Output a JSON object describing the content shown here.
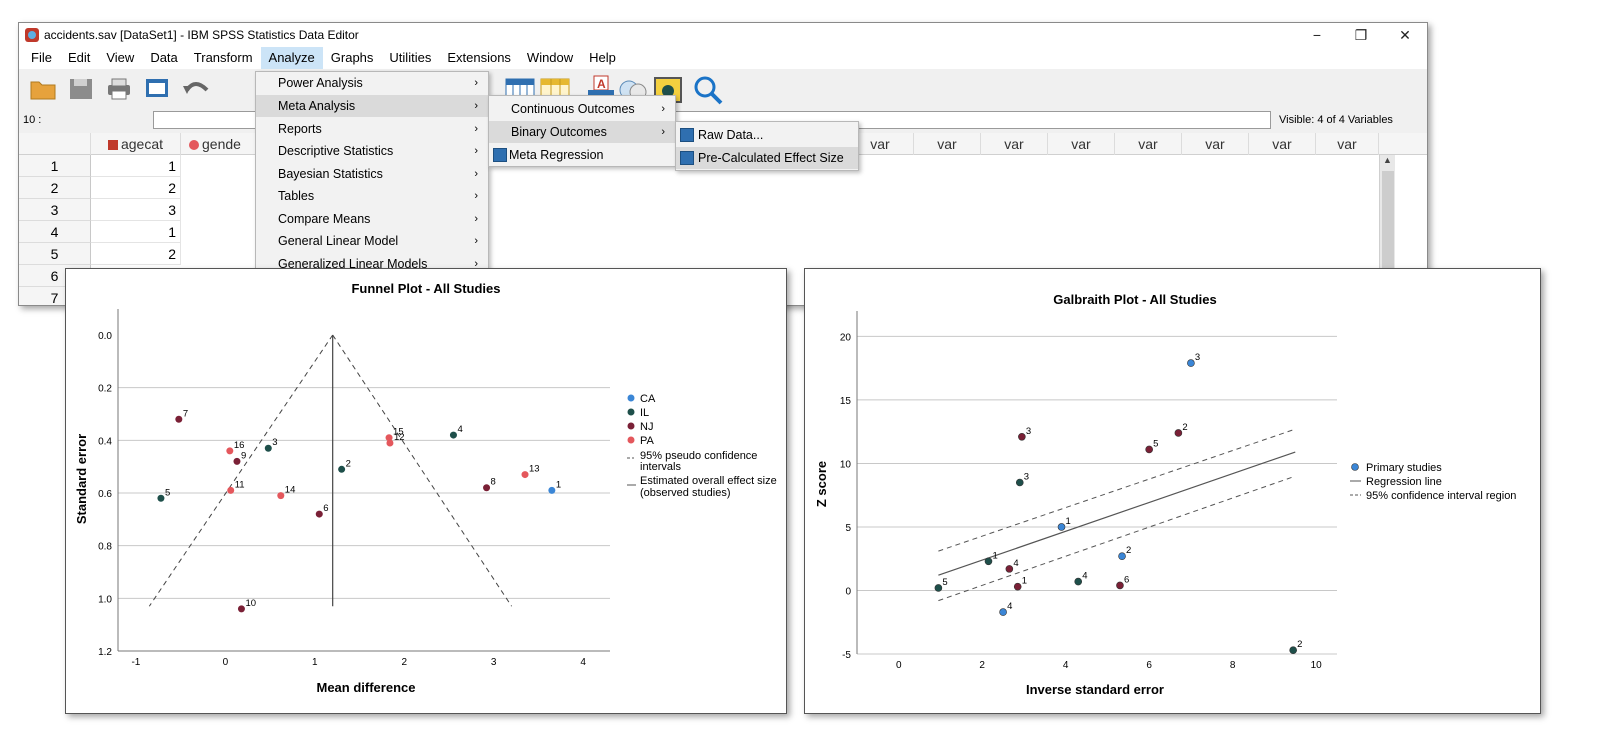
{
  "window": {
    "title": "accidents.sav [DataSet1] - IBM SPSS Statistics Data Editor",
    "controls": [
      "−",
      "❐",
      "✕"
    ]
  },
  "menubar": [
    "File",
    "Edit",
    "View",
    "Data",
    "Transform",
    "Analyze",
    "Graphs",
    "Utilities",
    "Extensions",
    "Window",
    "Help"
  ],
  "cell_ref": "10 :",
  "visible_text": "Visible: 4 of 4 Variables",
  "grid": {
    "columns": [
      "agecat",
      "gende",
      "var",
      "var",
      "var",
      "var",
      "var",
      "var",
      "var",
      "var"
    ],
    "row_numbers": [
      "1",
      "2",
      "3",
      "4",
      "5",
      "6",
      "7"
    ],
    "agecat_values": [
      "1",
      "2",
      "3",
      "1",
      "2"
    ]
  },
  "analyze_menu": [
    "Power Analysis",
    "Meta Analysis",
    "Reports",
    "Descriptive Statistics",
    "Bayesian Statistics",
    "Tables",
    "Compare Means",
    "General Linear Model",
    "Generalized Linear Models"
  ],
  "meta_menu": [
    "Continuous Outcomes",
    "Binary Outcomes",
    "Meta Regression"
  ],
  "binary_menu": [
    "Raw Data...",
    "Pre-Calculated Effect Size"
  ],
  "charts": {
    "funnel": {
      "title": "Funnel Plot - All Studies",
      "xlabel": "Mean difference",
      "ylabel": "Standard error",
      "legend_groups": [
        "CA",
        "IL",
        "NJ",
        "PA"
      ],
      "legend_ci": "95% pseudo confidence intervals",
      "legend_ci_lines": [
        "95% pseudo confidence",
        "intervals"
      ],
      "legend_effect_lines": [
        "Estimated overall effect size",
        "(observed studies)"
      ]
    },
    "galbraith": {
      "title": "Galbraith Plot - All Studies",
      "xlabel": "Inverse standard error",
      "ylabel": "Z score",
      "legend": [
        "Primary studies",
        "Regression line",
        "95% confidence interval region"
      ]
    }
  },
  "colors": {
    "CA": "#3b86d6",
    "IL": "#1e4f4a",
    "NJ": "#7a2036",
    "PA": "#e4575c",
    "primary": "#3b86d6",
    "line": "#555555"
  },
  "chart_data": [
    {
      "type": "scatter",
      "title": "Funnel Plot - All Studies",
      "xlabel": "Mean difference",
      "ylabel": "Standard error",
      "xlim": [
        -1.2,
        4.3
      ],
      "ylim": [
        0.0,
        1.2
      ],
      "y_reversed": true,
      "xticks": [
        -1,
        0,
        1,
        2,
        3,
        4
      ],
      "yticks": [
        0.0,
        0.2,
        0.4,
        0.6,
        0.8,
        1.0,
        1.2
      ],
      "ytick_labels": [
        "0.0",
        "0.2",
        "0.4",
        "0.6",
        "0.8",
        "1.0",
        "1.2"
      ],
      "overall_effect": 1.2,
      "funnel_apex_se": 0.0,
      "funnel_base_se": 1.03,
      "funnel_base_x": [
        -0.85,
        3.2
      ],
      "series": [
        {
          "name": "CA",
          "points": [
            {
              "x": 3.65,
              "y": 0.59,
              "label": "1"
            }
          ]
        },
        {
          "name": "IL",
          "points": [
            {
              "x": -0.72,
              "y": 0.62,
              "label": "5"
            },
            {
              "x": 0.48,
              "y": 0.43,
              "label": "3"
            },
            {
              "x": 1.3,
              "y": 0.51,
              "label": "2"
            },
            {
              "x": 2.55,
              "y": 0.38,
              "label": "4"
            }
          ]
        },
        {
          "name": "NJ",
          "points": [
            {
              "x": -0.52,
              "y": 0.32,
              "label": "7"
            },
            {
              "x": 0.13,
              "y": 0.48,
              "label": "9"
            },
            {
              "x": 1.05,
              "y": 0.68,
              "label": "6"
            },
            {
              "x": 2.92,
              "y": 0.58,
              "label": "8"
            },
            {
              "x": 0.18,
              "y": 1.04,
              "label": "10"
            }
          ]
        },
        {
          "name": "PA",
          "points": [
            {
              "x": 0.05,
              "y": 0.44,
              "label": "16"
            },
            {
              "x": 0.06,
              "y": 0.59,
              "label": "11"
            },
            {
              "x": 0.62,
              "y": 0.61,
              "label": "14"
            },
            {
              "x": 1.83,
              "y": 0.39,
              "label": "15"
            },
            {
              "x": 1.84,
              "y": 0.41,
              "label": "12"
            },
            {
              "x": 3.35,
              "y": 0.53,
              "label": "13"
            }
          ]
        }
      ]
    },
    {
      "type": "scatter",
      "title": "Galbraith Plot - All Studies",
      "xlabel": "Inverse standard error",
      "ylabel": "Z score",
      "xlim": [
        -1,
        10.5
      ],
      "ylim": [
        -5,
        22
      ],
      "xticks": [
        0,
        2,
        4,
        6,
        8,
        10
      ],
      "yticks": [
        -5,
        0,
        5,
        10,
        15,
        20
      ],
      "regression": {
        "x": [
          0.95,
          9.5
        ],
        "y": [
          1.2,
          10.9
        ]
      },
      "ci_upper": {
        "x": [
          0.95,
          9.5
        ],
        "y": [
          3.1,
          12.7
        ]
      },
      "ci_lower": {
        "x": [
          0.95,
          9.5
        ],
        "y": [
          -0.8,
          9.0
        ]
      },
      "points": [
        {
          "x": 7.0,
          "y": 17.9,
          "label": "3",
          "group": "CA"
        },
        {
          "x": 3.9,
          "y": 5.0,
          "label": "1",
          "group": "CA"
        },
        {
          "x": 5.35,
          "y": 2.7,
          "label": "2",
          "group": "CA"
        },
        {
          "x": 2.5,
          "y": -1.7,
          "label": "4",
          "group": "CA"
        },
        {
          "x": 2.9,
          "y": 8.5,
          "label": "3",
          "group": "IL"
        },
        {
          "x": 2.15,
          "y": 2.3,
          "label": "1",
          "group": "IL"
        },
        {
          "x": 0.95,
          "y": 0.2,
          "label": "5",
          "group": "IL"
        },
        {
          "x": 4.3,
          "y": 0.7,
          "label": "4",
          "group": "IL"
        },
        {
          "x": 9.45,
          "y": -4.7,
          "label": "2",
          "group": "IL"
        },
        {
          "x": 2.95,
          "y": 12.1,
          "label": "3",
          "group": "NJ"
        },
        {
          "x": 6.7,
          "y": 12.4,
          "label": "2",
          "group": "NJ"
        },
        {
          "x": 6.0,
          "y": 11.1,
          "label": "5",
          "group": "NJ"
        },
        {
          "x": 2.65,
          "y": 1.7,
          "label": "4",
          "group": "NJ"
        },
        {
          "x": 2.85,
          "y": 0.3,
          "label": "1",
          "group": "NJ"
        },
        {
          "x": 5.3,
          "y": 0.4,
          "label": "6",
          "group": "NJ"
        }
      ]
    }
  ]
}
